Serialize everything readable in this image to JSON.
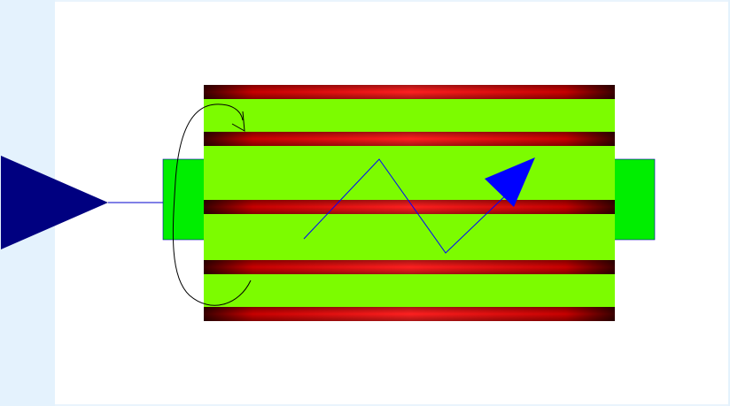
{
  "diagram": {
    "component": "heat-exchanger-tube-bundle",
    "colors": {
      "background": "#ffffff",
      "side_panel": "#e4f2fd",
      "input_triangle": "#000080",
      "connector_line": "#0000cd",
      "ports": "#00ee00",
      "port_stroke": "#0000aa",
      "bundle_fill": "#7cfc00",
      "tube_center": "#ff1a1a",
      "tube_edge": "#3a0000",
      "zigzag_line": "#0000ff",
      "zigzag_arrowhead": "#0000ff",
      "loop_line": "#000000"
    },
    "tube_count": 5,
    "icons": [
      "input-triangle-icon",
      "zigzag-flow-arrow-icon",
      "recirculation-loop-icon"
    ]
  }
}
